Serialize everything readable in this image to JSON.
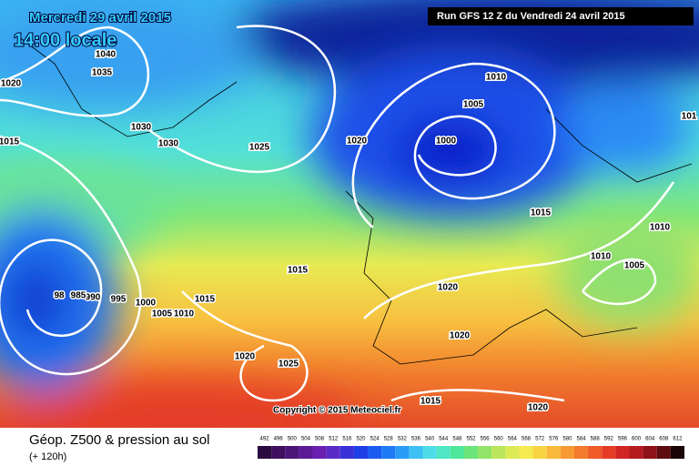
{
  "header": {
    "date": "Mercredi 29 avril 2015",
    "time": "14:00 locale",
    "run": "Run GFS 12 Z du Vendredi 24 avril 2015"
  },
  "isobar_labels": [
    1040,
    1035,
    1020,
    1015,
    1030,
    1030,
    1025,
    1020,
    1010,
    1005,
    1000,
    1015,
    1010,
    1010,
    1005,
    1015,
    1020,
    1015,
    1000,
    1005,
    1010,
    995,
    990,
    985,
    98,
    1020,
    1020,
    1025,
    1015,
    1020,
    101
  ],
  "copyright": "Copyright © 2015 Meteociel.fr",
  "legend": {
    "title": "Géop. Z500 & pression au sol",
    "lead": "(+ 120h)",
    "scale": [
      492,
      496,
      500,
      504,
      508,
      512,
      516,
      520,
      524,
      528,
      532,
      536,
      540,
      544,
      548,
      552,
      556,
      560,
      564,
      568,
      572,
      576,
      580,
      584,
      588,
      592,
      596,
      600,
      604,
      608,
      612
    ],
    "colors": [
      "#2b0b3f",
      "#3d0f5c",
      "#4b1479",
      "#5a1a96",
      "#6a1fb0",
      "#5b2bc8",
      "#3b2fd8",
      "#1f3ee6",
      "#1a5af0",
      "#1f7af5",
      "#2a9bf7",
      "#3ec0f5",
      "#4fdce8",
      "#4ee6c3",
      "#4de89a",
      "#6be57a",
      "#92e468",
      "#b9e65a",
      "#dcea55",
      "#f5ea4f",
      "#f8d444",
      "#f9b83a",
      "#f89a32",
      "#f47a2c",
      "#ee5a28",
      "#e43c26",
      "#d12424",
      "#b51a1e",
      "#8e1218",
      "#5c0c10",
      "#1a0505"
    ]
  }
}
